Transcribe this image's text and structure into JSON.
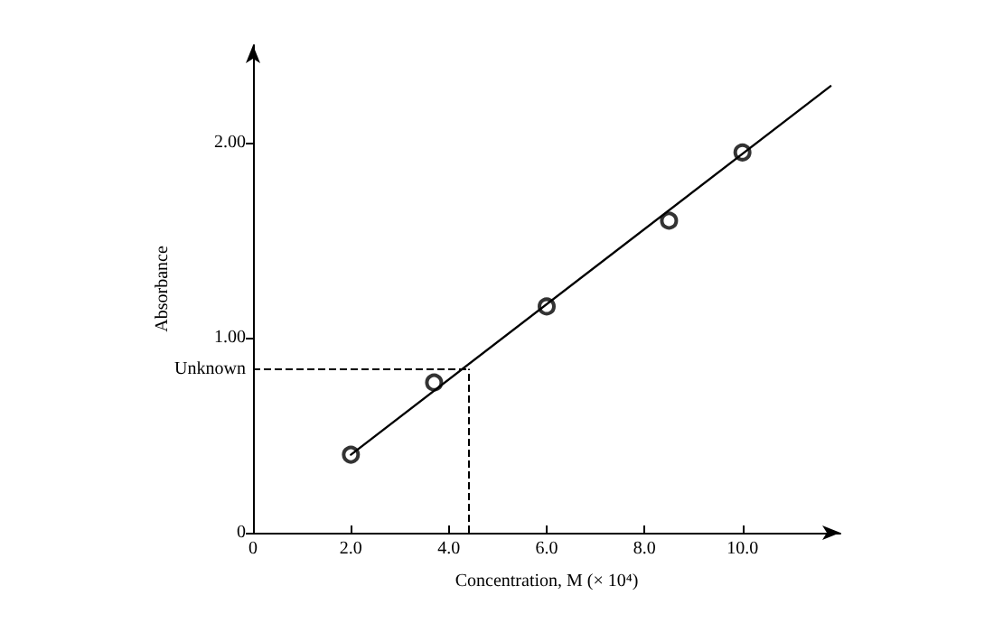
{
  "chart_data": {
    "type": "scatter",
    "xlabel": "Concentration, M (× 10⁴)",
    "ylabel": "Absorbance",
    "xlim": [
      0,
      12
    ],
    "ylim": [
      0,
      2.5
    ],
    "xticks": [
      0,
      {
        "value": 2,
        "label": "2.0"
      },
      {
        "value": 4,
        "label": "4.0"
      },
      {
        "value": 6,
        "label": "6.0"
      },
      {
        "value": 8,
        "label": "8.0"
      },
      {
        "value": 10,
        "label": "10.0"
      }
    ],
    "yticks": [
      0,
      {
        "value": 1,
        "label": "1.00"
      },
      {
        "value": 2,
        "label": "2.00"
      }
    ],
    "series": [
      {
        "color": "#000000",
        "marker": "circle",
        "x": [
          2.0,
          3.7,
          6.0,
          8.5,
          10.0
        ],
        "values": [
          0.4,
          0.77,
          1.16,
          1.6,
          1.95
        ]
      },
      {
        "type": "line",
        "color": "#000000",
        "marker": "none",
        "line_style": "solid",
        "x": [
          2.0,
          11.8
        ],
        "values": [
          0.4,
          2.29
        ]
      }
    ],
    "ref_lines": [
      {
        "axis": "y",
        "value": 0.84,
        "label": "Unknown",
        "line_style": "dashed",
        "color": "#000000"
      },
      {
        "axis": "x",
        "value": 4.4,
        "label": null,
        "line_style": "dashed",
        "color": "#000000"
      }
    ],
    "grid": false
  }
}
